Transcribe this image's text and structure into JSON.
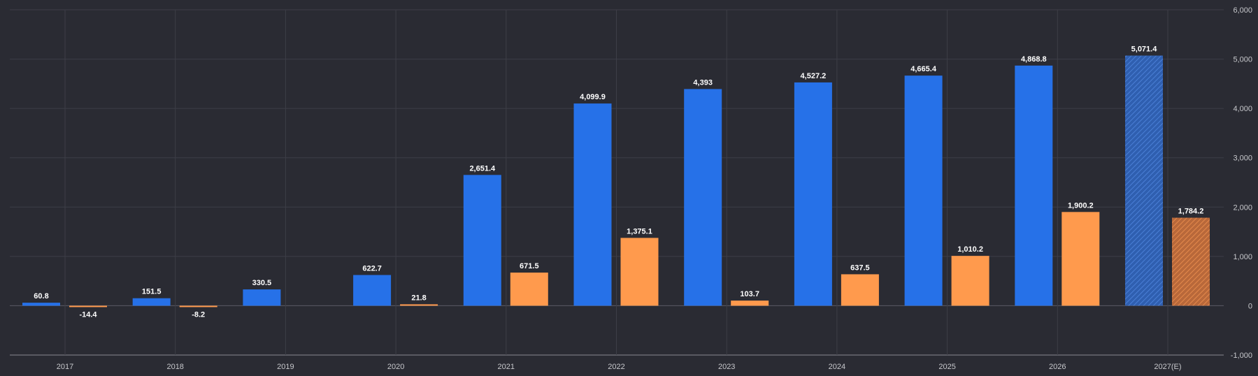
{
  "chart_data": {
    "type": "bar",
    "categories": [
      "2017",
      "2018",
      "2019",
      "2020",
      "2021",
      "2022",
      "2023",
      "2024",
      "2025",
      "2026",
      "2027(E)"
    ],
    "series": [
      {
        "color": "#2671e8",
        "values": [
          60.8,
          151.5,
          330.5,
          622.7,
          2651.4,
          4099.9,
          4393,
          4527.2,
          4665.4,
          4868.8,
          5071.4
        ],
        "labels": [
          "60.8",
          "151.5",
          "330.5",
          "622.7",
          "2,651.4",
          "4,099.9",
          "4,393",
          "4,527.2",
          "4,665.4",
          "4,868.8",
          "5,071.4"
        ]
      },
      {
        "color": "#ff9a4d",
        "values": [
          -14.4,
          -8.2,
          null,
          21.8,
          671.5,
          1375.1,
          103.7,
          637.5,
          1010.2,
          1900.2,
          1784.2
        ],
        "labels": [
          "-14.4",
          "-8.2",
          "",
          "21.8",
          "671.5",
          "1,375.1",
          "103.7",
          "637.5",
          "1,010.2",
          "1,900.2",
          "1,784.2"
        ]
      }
    ],
    "estimated_categories": [
      "2027(E)"
    ],
    "ylim": [
      -1000,
      6000
    ],
    "yticks": [
      6000,
      5000,
      4000,
      3000,
      2000,
      1000,
      0,
      -1000
    ],
    "ytick_labels": [
      "6,000",
      "5,000",
      "4,000",
      "3,000",
      "2,000",
      "1,000",
      "0",
      "-1,000"
    ],
    "grid": true,
    "y_axis_side": "right",
    "xlabel": "",
    "ylabel": ""
  }
}
